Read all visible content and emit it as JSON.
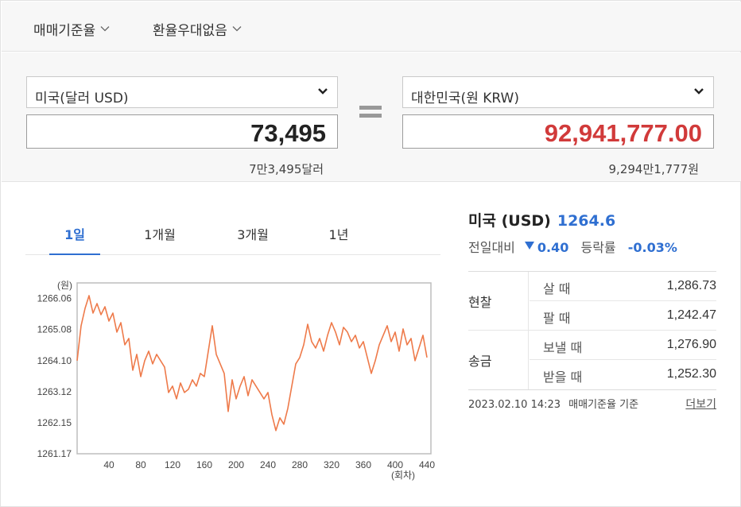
{
  "options": {
    "rate_basis": "매매기준율",
    "preferential": "환율우대없음"
  },
  "converter": {
    "from_currency": "미국(달러 USD)",
    "to_currency": "대한민국(원 KRW)",
    "from_amount": "73,495",
    "to_amount": "92,941,777.00",
    "from_amount_korean": "7만3,495달러",
    "to_amount_korean": "9,294만1,777원"
  },
  "tabs": [
    "1일",
    "1개월",
    "3개월",
    "1년"
  ],
  "active_tab": "1일",
  "summary": {
    "country": "미국",
    "code": "(USD)",
    "rate": "1264.6",
    "change_label": "전일대비",
    "change_value": "0.40",
    "change_direction": "down",
    "pct_label": "등락률",
    "pct_value": "-0.03%"
  },
  "rates_table": {
    "cash_label": "현찰",
    "cash_buy_label": "살 때",
    "cash_buy": "1,286.73",
    "cash_sell_label": "팔 때",
    "cash_sell": "1,242.47",
    "wire_label": "송금",
    "wire_send_label": "보낼 때",
    "wire_send": "1,276.90",
    "wire_receive_label": "받을 때",
    "wire_receive": "1,252.30"
  },
  "footer": {
    "timestamp": "2023.02.10 14:23",
    "basis": "매매기준율 기준",
    "more": "더보기"
  },
  "colors": {
    "accent": "#2f6fd1",
    "result_red": "#d13a3a",
    "line": "#ee7a4a"
  },
  "chart_data": {
    "type": "line",
    "yunit": "(원)",
    "xunit": "(회차)",
    "ylim": [
      1261.17,
      1266.55
    ],
    "xlim": [
      0,
      445
    ],
    "yticks": [
      "1266.06",
      "1265.08",
      "1264.10",
      "1263.12",
      "1262.15",
      "1261.17"
    ],
    "ytick_values": [
      1266.06,
      1265.08,
      1264.1,
      1263.12,
      1262.15,
      1261.17
    ],
    "xticks": [
      40,
      80,
      120,
      160,
      200,
      240,
      280,
      320,
      360,
      400,
      440
    ],
    "series": [
      {
        "x": [
          0,
          5,
          10,
          15,
          20,
          25,
          30,
          35,
          40,
          45,
          50,
          55,
          60,
          65,
          70,
          75,
          80,
          85,
          90,
          95,
          100,
          105,
          110,
          115,
          120,
          125,
          130,
          135,
          140,
          145,
          150,
          155,
          160,
          165,
          170,
          175,
          180,
          185,
          190,
          195,
          200,
          205,
          210,
          215,
          220,
          225,
          230,
          235,
          240,
          245,
          250,
          255,
          260,
          265,
          270,
          275,
          280,
          285,
          290,
          295,
          300,
          305,
          310,
          315,
          320,
          325,
          330,
          335,
          340,
          345,
          350,
          355,
          360,
          365,
          370,
          375,
          380,
          385,
          390,
          395,
          400,
          405,
          410,
          415,
          420,
          425,
          430,
          435,
          440
        ],
        "y": [
          1264.1,
          1265.2,
          1265.75,
          1266.15,
          1265.6,
          1265.9,
          1265.55,
          1265.8,
          1265.35,
          1265.6,
          1265.0,
          1265.3,
          1264.6,
          1264.8,
          1263.8,
          1264.3,
          1263.6,
          1264.1,
          1264.4,
          1264.0,
          1264.3,
          1264.1,
          1263.9,
          1263.1,
          1263.3,
          1262.9,
          1263.4,
          1263.1,
          1263.2,
          1263.5,
          1263.3,
          1263.7,
          1263.6,
          1264.4,
          1265.2,
          1264.3,
          1264.0,
          1263.7,
          1262.5,
          1263.5,
          1262.9,
          1263.3,
          1263.6,
          1263.0,
          1263.5,
          1263.3,
          1263.1,
          1262.9,
          1263.1,
          1262.4,
          1261.9,
          1262.3,
          1262.1,
          1262.6,
          1263.3,
          1264.0,
          1264.2,
          1264.6,
          1265.25,
          1264.7,
          1264.5,
          1264.8,
          1264.4,
          1264.9,
          1265.3,
          1265.0,
          1264.6,
          1265.15,
          1265.0,
          1264.7,
          1264.9,
          1264.5,
          1264.7,
          1264.2,
          1263.7,
          1264.1,
          1264.6,
          1264.9,
          1265.2,
          1264.7,
          1265.0,
          1264.4,
          1265.1,
          1264.6,
          1264.8,
          1264.1,
          1264.5,
          1264.9,
          1264.2
        ]
      }
    ]
  }
}
